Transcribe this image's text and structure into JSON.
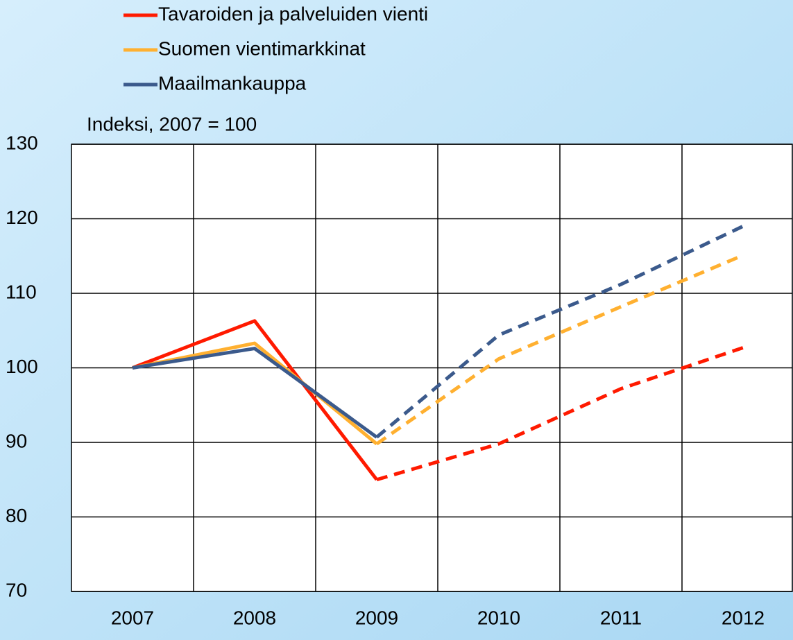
{
  "chart_data": {
    "type": "line",
    "y_label": "Indeksi, 2007 = 100",
    "categories": [
      "2007",
      "2008",
      "2009",
      "2010",
      "2011",
      "2012"
    ],
    "series": [
      {
        "name": "Tavaroiden ja palveluiden vienti",
        "color": "#ff1a00",
        "values": [
          100,
          106.3,
          85,
          89.8,
          97.2,
          102.7
        ]
      },
      {
        "name": "Suomen vientimarkkinat",
        "color": "#ffb030",
        "values": [
          100,
          103.3,
          89.8,
          101.2,
          108.2,
          115.1
        ]
      },
      {
        "name": "Maailmankauppa",
        "color": "#3b5a8c",
        "values": [
          100,
          102.6,
          90.7,
          104.4,
          111.2,
          119
        ]
      }
    ],
    "dashed_from": 2,
    "ylim": [
      70,
      130
    ],
    "yticks": [
      70,
      80,
      90,
      100,
      110,
      120,
      130
    ],
    "grid": true,
    "legend": "top"
  }
}
